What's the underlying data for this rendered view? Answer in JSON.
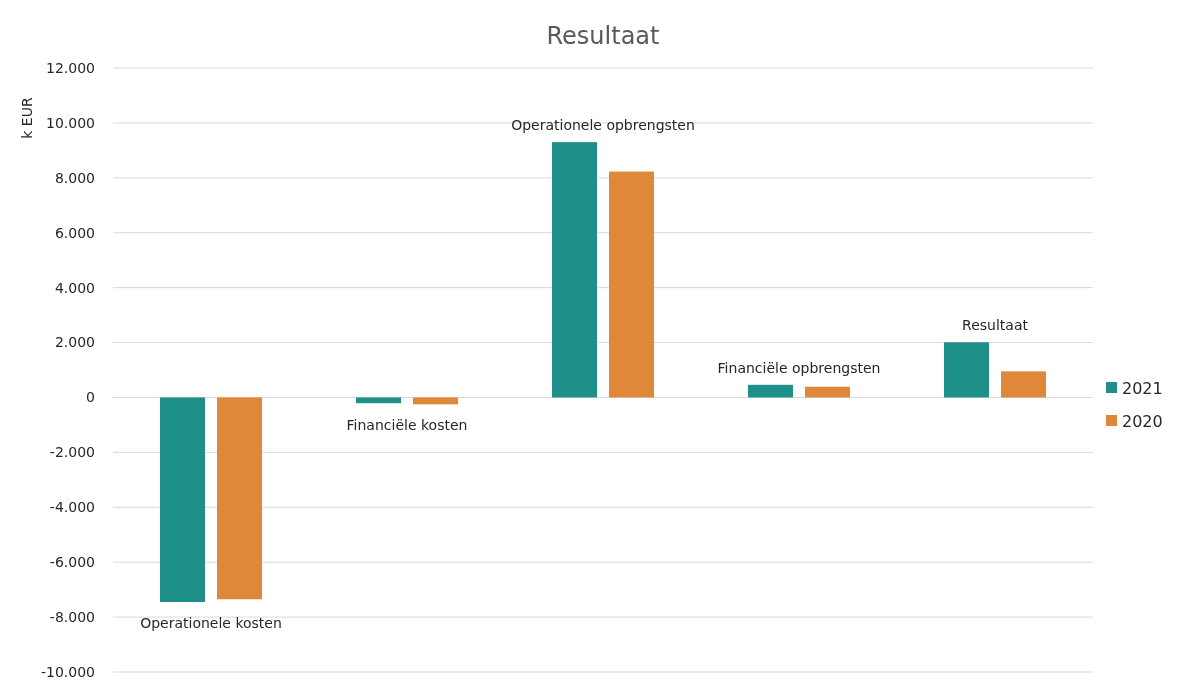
{
  "chart_data": {
    "type": "bar",
    "title": "Resultaat",
    "ylabel": "k EUR",
    "categories": [
      "Operationele kosten",
      "Financiële kosten",
      "Operationele opbrengsten",
      "Financiële opbrengsten",
      "Resultaat"
    ],
    "series": [
      {
        "name": "2021",
        "color": "#1f8f89",
        "values": [
          -7450,
          -210,
          9300,
          460,
          2010
        ]
      },
      {
        "name": "2020",
        "color": "#e0883a",
        "values": [
          -7350,
          -250,
          8230,
          390,
          950
        ]
      }
    ],
    "ylim": [
      -10000,
      12000
    ],
    "yticks": [
      {
        "value": -10000,
        "label": "-10.000"
      },
      {
        "value": -8000,
        "label": "-8.000"
      },
      {
        "value": -6000,
        "label": "-6.000"
      },
      {
        "value": -4000,
        "label": "-4.000"
      },
      {
        "value": -2000,
        "label": "-2.000"
      },
      0,
      {
        "value": 2000,
        "label": "2.000"
      },
      {
        "value": 4000,
        "label": "4.000"
      },
      {
        "value": 6000,
        "label": "6.000"
      },
      {
        "value": 8000,
        "label": "8.000"
      },
      {
        "value": 10000,
        "label": "10.000"
      },
      {
        "value": 12000,
        "label": "12.000"
      }
    ],
    "grid": "y",
    "legend": "right"
  }
}
